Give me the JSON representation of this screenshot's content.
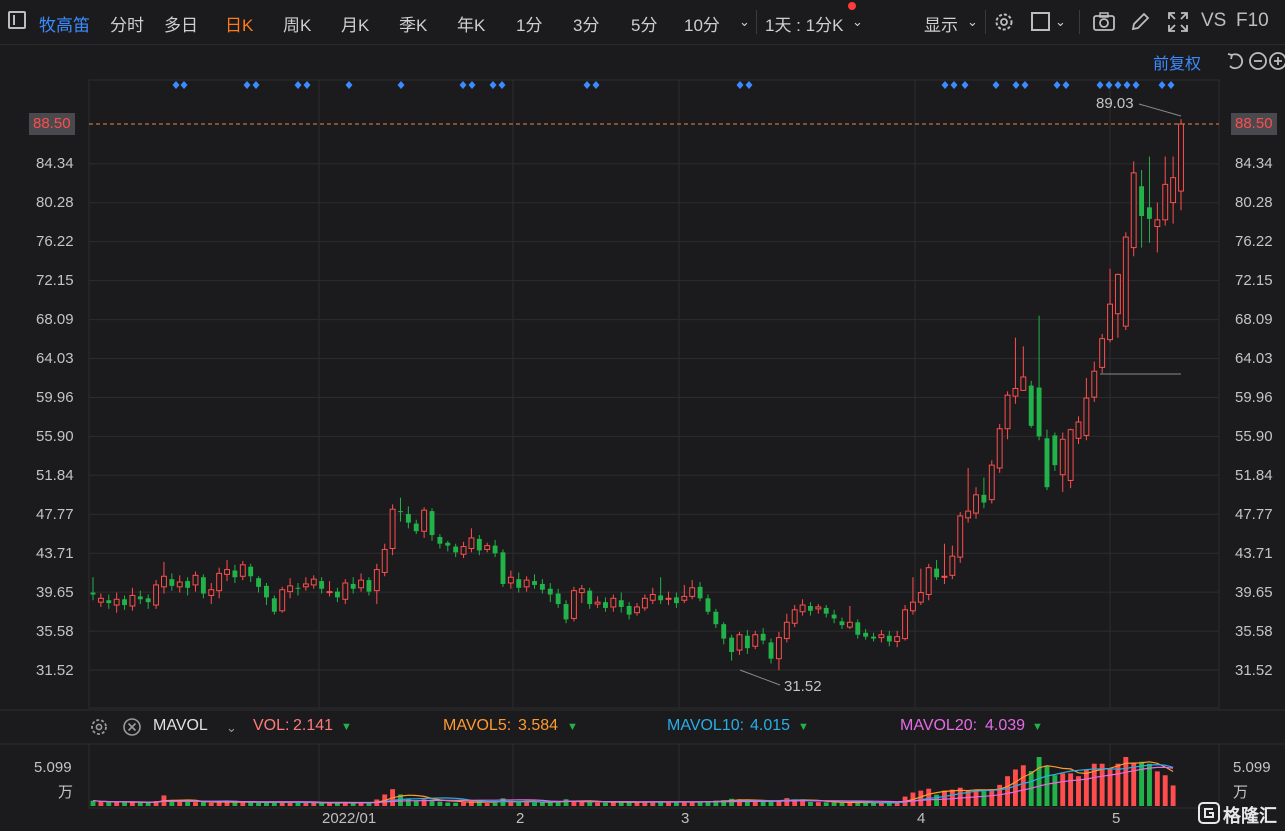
{
  "toolbar": {
    "stock_name": "牧高笛",
    "periods": [
      "分时",
      "多日",
      "日K",
      "周K",
      "月K",
      "季K",
      "年K",
      "1分",
      "3分",
      "5分",
      "10分"
    ],
    "active_period": "日K",
    "interval_select": "1天 : 1分K",
    "display_label": "显示",
    "vs_label": "VS",
    "f10_label": "F10"
  },
  "adjust_label": "前复权",
  "price_axis": {
    "ticks": [
      "84.34",
      "80.28",
      "76.22",
      "72.15",
      "68.09",
      "64.03",
      "59.96",
      "55.90",
      "51.84",
      "47.77",
      "43.71",
      "39.65",
      "35.58",
      "31.52"
    ],
    "current_price": "88.50"
  },
  "annotations": {
    "high": "89.03",
    "low": "31.52"
  },
  "x_axis": {
    "labels": [
      "2022/01",
      "2",
      "3",
      "4",
      "5"
    ]
  },
  "volume_panel": {
    "indicator": "MAVOL",
    "vol": {
      "label": "VOL:",
      "value": "2.141"
    },
    "mavol5": {
      "label": "MAVOL5:",
      "value": "3.584"
    },
    "mavol10": {
      "label": "MAVOL10:",
      "value": "4.015"
    },
    "mavol20": {
      "label": "MAVOL20:",
      "value": "4.039"
    },
    "axis_value": "5.099",
    "axis_unit": "万"
  },
  "colors": {
    "up": "#ff4d4d",
    "down": "#21b34a",
    "accent": "#ff7a1a",
    "link": "#3b8bff",
    "ma5": "#ff9a2e",
    "ma10": "#27aee8",
    "ma20": "#e46be6"
  },
  "brand": "格隆汇",
  "chart_data": {
    "type": "candlestick",
    "ylim": [
      29.0,
      91.0
    ],
    "candles": [
      [
        39.6,
        39.4,
        41.2,
        38.8
      ],
      [
        38.6,
        39.0,
        39.5,
        38.1
      ],
      [
        38.8,
        38.5,
        39.4,
        37.9
      ],
      [
        38.3,
        38.9,
        39.6,
        37.5
      ],
      [
        38.9,
        38.3,
        39.3,
        37.8
      ],
      [
        38.2,
        39.3,
        40.1,
        37.7
      ],
      [
        39.2,
        38.9,
        39.8,
        38.4
      ],
      [
        39.0,
        38.6,
        39.4,
        37.9
      ],
      [
        38.3,
        40.4,
        40.9,
        37.9
      ],
      [
        40.2,
        41.3,
        42.8,
        39.5
      ],
      [
        41.0,
        40.3,
        41.6,
        39.8
      ],
      [
        40.2,
        40.7,
        41.4,
        39.6
      ],
      [
        40.8,
        40.1,
        41.2,
        39.3
      ],
      [
        40.4,
        41.4,
        41.8,
        39.7
      ],
      [
        41.2,
        39.5,
        41.5,
        39.0
      ],
      [
        39.3,
        39.9,
        40.6,
        38.4
      ],
      [
        39.8,
        41.6,
        42.2,
        39.0
      ],
      [
        41.5,
        42.0,
        43.0,
        40.8
      ],
      [
        41.9,
        41.2,
        42.5,
        40.6
      ],
      [
        41.3,
        42.5,
        42.9,
        40.9
      ],
      [
        42.3,
        41.3,
        42.6,
        40.7
      ],
      [
        41.1,
        40.2,
        41.3,
        39.6
      ],
      [
        40.3,
        39.1,
        40.6,
        38.3
      ],
      [
        39.0,
        37.6,
        39.3,
        37.3
      ],
      [
        37.7,
        39.9,
        40.2,
        37.5
      ],
      [
        39.7,
        40.3,
        41.1,
        39.0
      ],
      [
        40.1,
        40.0,
        40.6,
        39.3
      ],
      [
        40.2,
        40.5,
        41.2,
        39.8
      ],
      [
        40.4,
        41.0,
        41.4,
        40.0
      ],
      [
        40.8,
        40.0,
        41.2,
        39.5
      ],
      [
        39.7,
        39.7,
        40.8,
        39.2
      ],
      [
        39.7,
        39.1,
        40.1,
        38.6
      ],
      [
        38.9,
        40.6,
        41.0,
        38.4
      ],
      [
        40.5,
        40.0,
        41.2,
        39.5
      ],
      [
        40.1,
        40.9,
        41.6,
        39.7
      ],
      [
        40.9,
        39.7,
        41.2,
        39.3
      ],
      [
        39.8,
        42.0,
        42.6,
        38.4
      ],
      [
        41.7,
        44.1,
        44.7,
        41.3
      ],
      [
        44.2,
        48.3,
        48.8,
        43.5
      ],
      [
        48.1,
        48.0,
        49.5,
        47.0
      ],
      [
        47.8,
        46.9,
        48.6,
        46.3
      ],
      [
        46.8,
        46.0,
        47.2,
        45.7
      ],
      [
        46.0,
        48.2,
        48.5,
        45.3
      ],
      [
        48.1,
        45.6,
        48.4,
        45.0
      ],
      [
        45.4,
        44.7,
        45.7,
        44.2
      ],
      [
        44.8,
        44.5,
        45.0,
        43.9
      ],
      [
        44.4,
        43.8,
        44.7,
        43.3
      ],
      [
        43.6,
        44.4,
        44.9,
        43.2
      ],
      [
        44.2,
        45.3,
        46.3,
        43.8
      ],
      [
        45.2,
        44.0,
        45.6,
        43.5
      ],
      [
        44.1,
        44.5,
        44.8,
        43.8
      ],
      [
        44.5,
        43.7,
        45.1,
        43.3
      ],
      [
        43.8,
        40.5,
        44.1,
        40.2
      ],
      [
        40.6,
        41.2,
        41.9,
        40.0
      ],
      [
        41.0,
        40.1,
        41.7,
        39.6
      ],
      [
        40.2,
        40.9,
        41.3,
        39.7
      ],
      [
        40.8,
        40.4,
        41.5,
        40.0
      ],
      [
        40.5,
        39.9,
        41.0,
        39.5
      ],
      [
        40.0,
        39.4,
        40.6,
        38.6
      ],
      [
        39.5,
        38.4,
        40.0,
        38.0
      ],
      [
        38.4,
        36.8,
        38.8,
        36.4
      ],
      [
        36.9,
        39.8,
        40.2,
        36.6
      ],
      [
        39.6,
        40.0,
        40.4,
        38.5
      ],
      [
        39.8,
        38.4,
        40.1,
        37.9
      ],
      [
        38.4,
        38.6,
        39.2,
        38.0
      ],
      [
        38.6,
        38.0,
        39.1,
        37.6
      ],
      [
        38.1,
        39.0,
        39.4,
        37.6
      ],
      [
        38.8,
        38.1,
        39.6,
        37.5
      ],
      [
        38.2,
        37.3,
        38.6,
        36.8
      ],
      [
        37.5,
        38.1,
        38.5,
        37.2
      ],
      [
        38.0,
        39.0,
        39.4,
        37.7
      ],
      [
        38.8,
        39.4,
        40.1,
        38.4
      ],
      [
        39.3,
        38.8,
        41.2,
        38.4
      ],
      [
        38.9,
        39.0,
        39.7,
        38.3
      ],
      [
        39.1,
        38.5,
        39.6,
        38.0
      ],
      [
        38.8,
        39.2,
        40.4,
        38.5
      ],
      [
        39.2,
        40.1,
        40.9,
        38.9
      ],
      [
        40.2,
        39.0,
        40.7,
        38.7
      ],
      [
        39.0,
        37.6,
        39.4,
        37.3
      ],
      [
        37.6,
        36.3,
        37.9,
        35.9
      ],
      [
        36.3,
        34.8,
        36.5,
        34.2
      ],
      [
        34.9,
        33.4,
        35.2,
        32.5
      ],
      [
        33.6,
        35.2,
        35.5,
        33.1
      ],
      [
        35.1,
        33.8,
        35.7,
        33.2
      ],
      [
        34.0,
        35.2,
        35.6,
        33.7
      ],
      [
        35.3,
        34.6,
        35.9,
        34.2
      ],
      [
        34.4,
        32.7,
        34.8,
        32.2
      ],
      [
        32.7,
        34.9,
        35.5,
        31.5
      ],
      [
        34.8,
        36.5,
        37.4,
        34.4
      ],
      [
        36.4,
        37.8,
        38.3,
        36.0
      ],
      [
        37.6,
        38.3,
        38.9,
        37.2
      ],
      [
        38.2,
        37.7,
        38.6,
        37.2
      ],
      [
        37.9,
        38.1,
        38.4,
        37.4
      ],
      [
        38.0,
        37.4,
        38.3,
        37.0
      ],
      [
        37.3,
        36.9,
        37.8,
        36.4
      ],
      [
        36.6,
        36.2,
        37.0,
        35.8
      ],
      [
        36.0,
        36.5,
        38.2,
        35.8
      ],
      [
        36.5,
        35.2,
        36.8,
        34.8
      ],
      [
        35.4,
        35.0,
        35.8,
        34.7
      ],
      [
        35.0,
        34.8,
        35.4,
        34.5
      ],
      [
        34.9,
        35.2,
        35.7,
        34.4
      ],
      [
        35.1,
        34.5,
        35.6,
        34.0
      ],
      [
        34.5,
        35.0,
        35.6,
        33.9
      ],
      [
        34.8,
        37.8,
        38.3,
        34.6
      ],
      [
        37.7,
        38.6,
        41.2,
        37.3
      ],
      [
        38.6,
        39.6,
        42.1,
        38.3
      ],
      [
        39.4,
        42.2,
        42.6,
        38.8
      ],
      [
        42.1,
        41.2,
        43.0,
        40.9
      ],
      [
        41.2,
        41.3,
        44.7,
        40.5
      ],
      [
        41.4,
        43.4,
        44.5,
        41.0
      ],
      [
        43.3,
        47.6,
        48.0,
        42.7
      ],
      [
        47.4,
        48.1,
        52.6,
        46.9
      ],
      [
        47.9,
        49.8,
        50.6,
        47.3
      ],
      [
        49.8,
        49.0,
        51.6,
        48.4
      ],
      [
        49.3,
        52.9,
        53.4,
        48.9
      ],
      [
        52.6,
        56.7,
        57.2,
        52.1
      ],
      [
        56.7,
        60.2,
        60.6,
        55.6
      ],
      [
        60.1,
        60.9,
        66.2,
        59.3
      ],
      [
        60.7,
        62.1,
        65.3,
        61.6
      ],
      [
        61.2,
        57.0,
        61.7,
        56.8
      ],
      [
        61.0,
        55.9,
        68.5,
        55.5
      ],
      [
        55.7,
        50.6,
        56.6,
        50.3
      ],
      [
        56.0,
        52.9,
        56.3,
        52.3
      ],
      [
        51.9,
        55.6,
        56.3,
        50.1
      ],
      [
        51.3,
        56.6,
        56.7,
        50.5
      ],
      [
        55.7,
        57.4,
        58.0,
        55.1
      ],
      [
        56.0,
        59.9,
        62.0,
        55.5
      ],
      [
        60.0,
        62.7,
        63.7,
        59.5
      ],
      [
        63.1,
        66.1,
        66.6,
        62.5
      ],
      [
        66.0,
        69.7,
        73.4,
        65.7
      ],
      [
        68.7,
        72.8,
        72.9,
        66.2
      ],
      [
        67.4,
        76.7,
        77.2,
        67.0
      ],
      [
        75.6,
        83.4,
        84.6,
        74.7
      ],
      [
        82.0,
        78.9,
        83.7,
        75.6
      ],
      [
        79.8,
        78.6,
        85.1,
        76.1
      ],
      [
        77.8,
        78.5,
        80.3,
        75.1
      ],
      [
        78.5,
        82.2,
        85.1,
        77.9
      ],
      [
        80.3,
        82.9,
        85.1,
        78.1
      ],
      [
        81.5,
        88.5,
        89.0,
        79.5
      ]
    ],
    "volume": [
      0.55,
      0.42,
      0.4,
      0.38,
      0.37,
      0.45,
      0.36,
      0.33,
      0.52,
      1.1,
      0.6,
      0.46,
      0.44,
      0.4,
      0.43,
      0.33,
      0.49,
      0.41,
      0.36,
      0.42,
      0.39,
      0.34,
      0.37,
      0.4,
      0.45,
      0.35,
      0.33,
      0.32,
      0.36,
      0.32,
      0.3,
      0.28,
      0.42,
      0.31,
      0.34,
      0.3,
      0.68,
      1.2,
      1.75,
      1.2,
      0.79,
      0.54,
      0.7,
      0.66,
      0.46,
      0.36,
      0.34,
      0.38,
      0.51,
      0.48,
      0.3,
      0.34,
      0.8,
      0.42,
      0.4,
      0.41,
      0.36,
      0.38,
      0.44,
      0.52,
      0.7,
      0.52,
      0.43,
      0.47,
      0.36,
      0.35,
      0.4,
      0.39,
      0.42,
      0.36,
      0.43,
      0.47,
      0.5,
      0.4,
      0.37,
      0.39,
      0.44,
      0.46,
      0.5,
      0.56,
      0.61,
      0.75,
      0.7,
      0.55,
      0.44,
      0.46,
      0.5,
      0.6,
      0.82,
      0.7,
      0.55,
      0.42,
      0.4,
      0.38,
      0.36,
      0.35,
      0.36,
      0.39,
      0.34,
      0.33,
      0.36,
      0.34,
      0.38,
      0.98,
      1.4,
      1.6,
      1.8,
      1.18,
      1.6,
      1.7,
      1.9,
      1.62,
      1.6,
      1.54,
      1.76,
      2.2,
      3.1,
      3.8,
      4.24,
      3.64,
      5.1,
      4.2,
      3.2,
      3.4,
      3.4,
      3.1,
      3.8,
      4.4,
      4.4,
      3.9,
      4.4,
      5.1,
      4.5,
      4.6,
      4.4,
      3.6,
      3.2,
      2.14
    ]
  }
}
